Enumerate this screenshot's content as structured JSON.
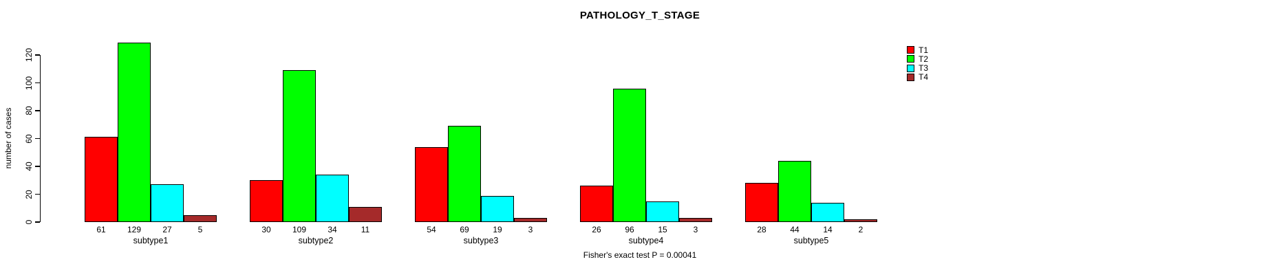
{
  "title": "PATHOLOGY_T_STAGE",
  "chart_data": {
    "type": "bar",
    "title": "PATHOLOGY_T_STAGE",
    "categories": [
      "subtype1",
      "subtype2",
      "subtype3",
      "subtype4",
      "subtype5"
    ],
    "series": [
      {
        "name": "T1",
        "color": "#FF0000",
        "values": [
          61,
          30,
          54,
          26,
          28
        ]
      },
      {
        "name": "T2",
        "color": "#00FF00",
        "values": [
          129,
          109,
          69,
          96,
          44
        ]
      },
      {
        "name": "T3",
        "color": "#00FFFF",
        "values": [
          27,
          34,
          19,
          15,
          14
        ]
      },
      {
        "name": "T4",
        "color": "#A52A2A",
        "values": [
          5,
          11,
          3,
          3,
          2
        ]
      }
    ],
    "bar_value_labels_shown": true,
    "xlabel": "",
    "ylabel": "number of cases",
    "yticks": [
      0,
      20,
      40,
      60,
      80,
      100,
      120
    ],
    "ylim": [
      0,
      130
    ],
    "grid": false,
    "legend_position": "top-right",
    "annotation": "Fisher's exact test P = 0.00041"
  }
}
